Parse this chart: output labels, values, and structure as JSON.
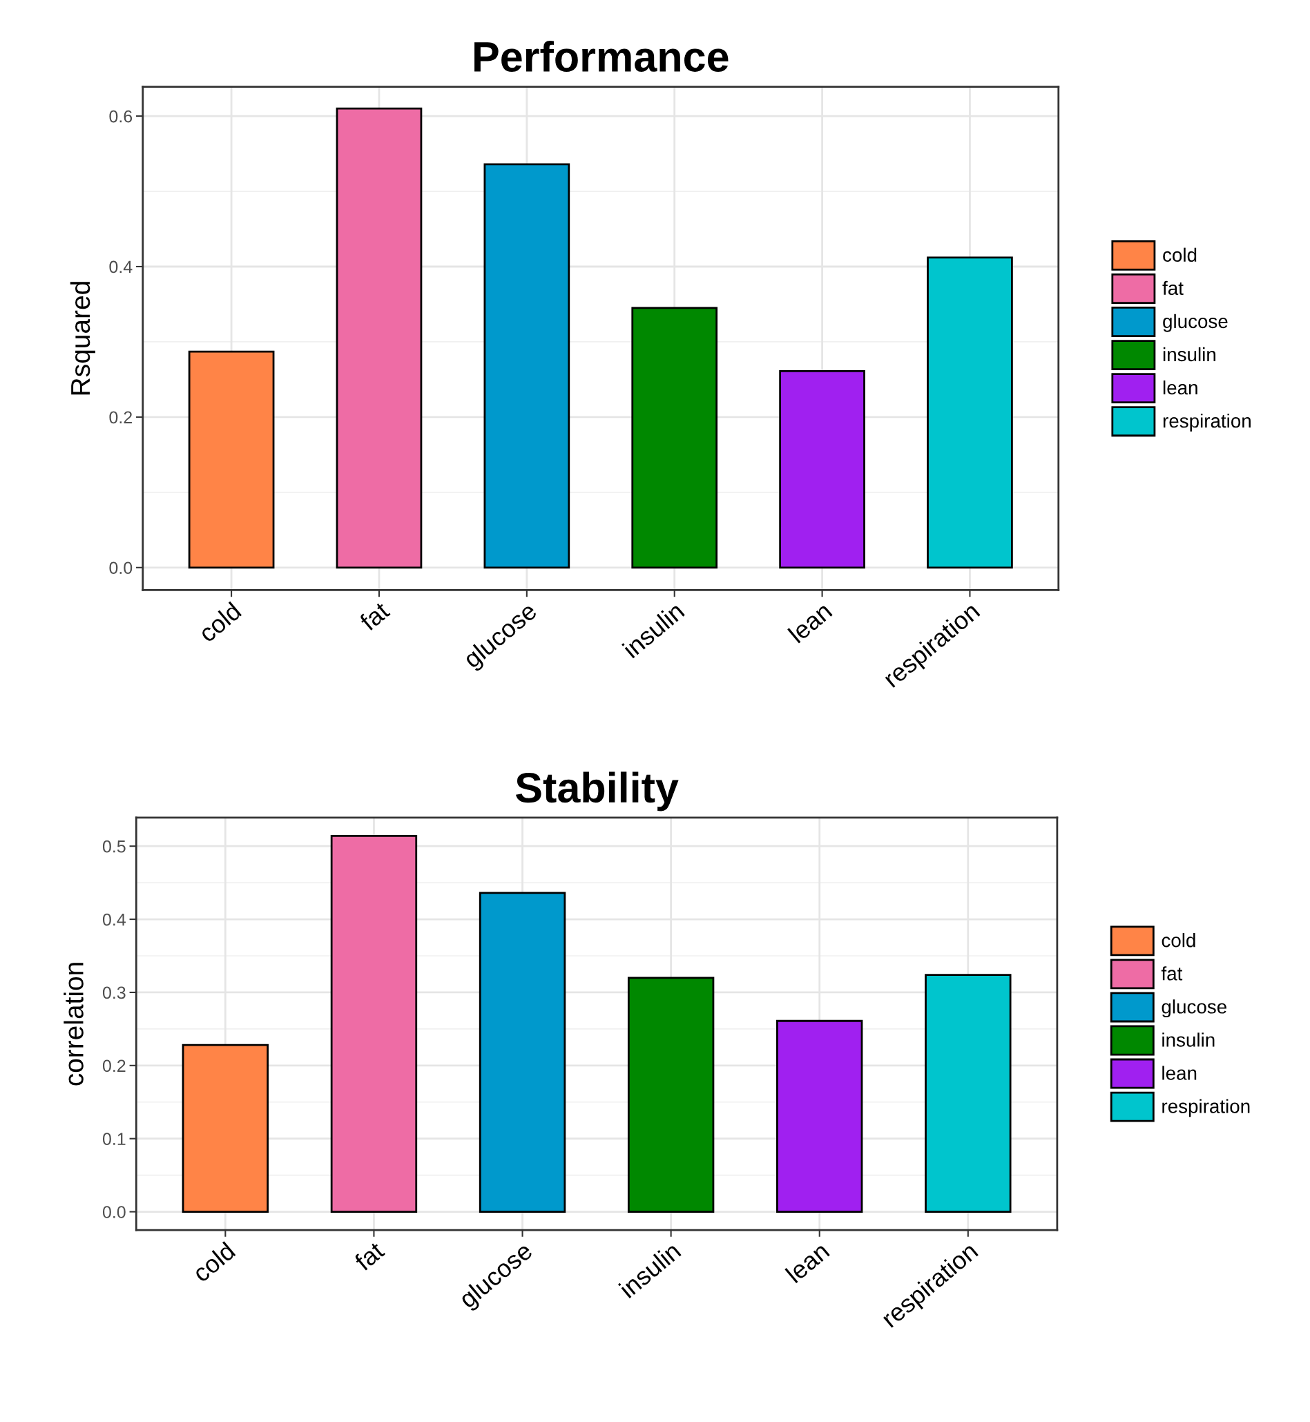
{
  "chart_data": [
    {
      "type": "bar",
      "title": "Performance",
      "ylabel": "Rsquared",
      "categories": [
        "cold",
        "fat",
        "glucose",
        "insulin",
        "lean",
        "respiration"
      ],
      "series": [
        {
          "name": "cold",
          "color": "#ff8447",
          "values": [
            0.287,
            null,
            null,
            null,
            null,
            null
          ]
        },
        {
          "name": "fat",
          "color": "#ee6ca5",
          "values": [
            null,
            0.61,
            null,
            null,
            null,
            null
          ]
        },
        {
          "name": "glucose",
          "color": "#0099cc",
          "values": [
            null,
            null,
            0.536,
            null,
            null,
            null
          ]
        },
        {
          "name": "insulin",
          "color": "#008800",
          "values": [
            null,
            null,
            null,
            0.345,
            null,
            null
          ]
        },
        {
          "name": "lean",
          "color": "#a020f0",
          "values": [
            null,
            null,
            null,
            null,
            0.261,
            null
          ]
        },
        {
          "name": "respiration",
          "color": "#00c5cd",
          "values": [
            null,
            null,
            null,
            null,
            null,
            0.412
          ]
        }
      ],
      "ylim": [
        -0.03,
        0.639
      ],
      "yticks": [
        {
          "value": 0,
          "label": "0.0"
        },
        0.2,
        0.4,
        0.6
      ],
      "grid": true,
      "legend": "right"
    },
    {
      "type": "bar",
      "title": "Stability",
      "ylabel": "correlation",
      "categories": [
        "cold",
        "fat",
        "glucose",
        "insulin",
        "lean",
        "respiration"
      ],
      "series": [
        {
          "name": "cold",
          "color": "#ff8447",
          "values": [
            0.228,
            null,
            null,
            null,
            null,
            null
          ]
        },
        {
          "name": "fat",
          "color": "#ee6ca5",
          "values": [
            null,
            0.514,
            null,
            null,
            null,
            null
          ]
        },
        {
          "name": "glucose",
          "color": "#0099cc",
          "values": [
            null,
            null,
            0.436,
            null,
            null,
            null
          ]
        },
        {
          "name": "insulin",
          "color": "#008800",
          "values": [
            null,
            null,
            null,
            0.32,
            null,
            null
          ]
        },
        {
          "name": "lean",
          "color": "#a020f0",
          "values": [
            null,
            null,
            null,
            null,
            0.261,
            null
          ]
        },
        {
          "name": "respiration",
          "color": "#00c5cd",
          "values": [
            null,
            null,
            null,
            null,
            null,
            0.324
          ]
        }
      ],
      "ylim": [
        -0.025,
        0.539
      ],
      "yticks": [
        {
          "value": 0,
          "label": "0.0"
        },
        0.1,
        0.2,
        0.3,
        0.4,
        0.5
      ],
      "grid": true,
      "legend": "right"
    }
  ]
}
